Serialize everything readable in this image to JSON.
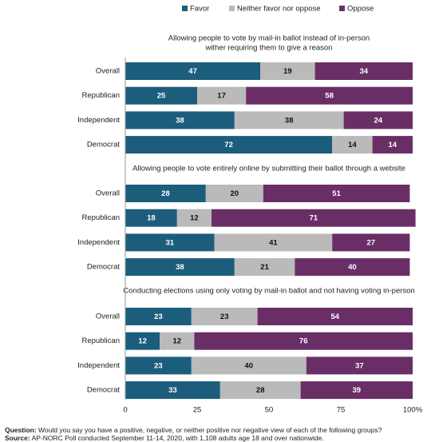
{
  "chart_data": {
    "type": "bar",
    "stacked": true,
    "legend": "top",
    "series": [
      {
        "name": "Favor",
        "color": "#1c5d7c"
      },
      {
        "name": "Neither favor nor oppose",
        "color": "#bababa"
      },
      {
        "name": "Oppose",
        "color": "#6a2e66"
      }
    ],
    "panels": [
      {
        "title": [
          "Allowing people to vote by mail-in ballot instead of in-person",
          "wither requiring them to give a reason"
        ],
        "categories": [
          "Overall",
          "Republican",
          "Independent",
          "Democrat"
        ],
        "values": [
          [
            47,
            19,
            34
          ],
          [
            25,
            17,
            58
          ],
          [
            38,
            38,
            24
          ],
          [
            72,
            14,
            14
          ]
        ]
      },
      {
        "title": [
          "Allowing people to vote entirely online by submitting their ballot through a website"
        ],
        "categories": [
          "Overall",
          "Republican",
          "Independent",
          "Democrat"
        ],
        "values": [
          [
            28,
            20,
            51
          ],
          [
            18,
            12,
            71
          ],
          [
            31,
            41,
            27
          ],
          [
            38,
            21,
            40
          ]
        ]
      },
      {
        "title": [
          "Conducting elections  using only voting by mail-in ballot and not having voting in-person"
        ],
        "categories": [
          "Overall",
          "Republican",
          "Independent",
          "Democrat"
        ],
        "values": [
          [
            23,
            23,
            54
          ],
          [
            12,
            12,
            76
          ],
          [
            23,
            40,
            37
          ],
          [
            33,
            28,
            39
          ]
        ]
      }
    ],
    "xlim": [
      0,
      100
    ],
    "xticks": [
      0,
      25,
      50,
      75,
      {
        "value": 100,
        "label": "100%"
      }
    ],
    "question_label": "Question:",
    "question": "Would you say you have a positive, negative, or neither positive nor negative view of each of the following groups?",
    "source_label": "Source:",
    "source": "AP-NORC Poll conducted September 11-14, 2020, with 1,108 adults age 18 and over nationwide."
  }
}
